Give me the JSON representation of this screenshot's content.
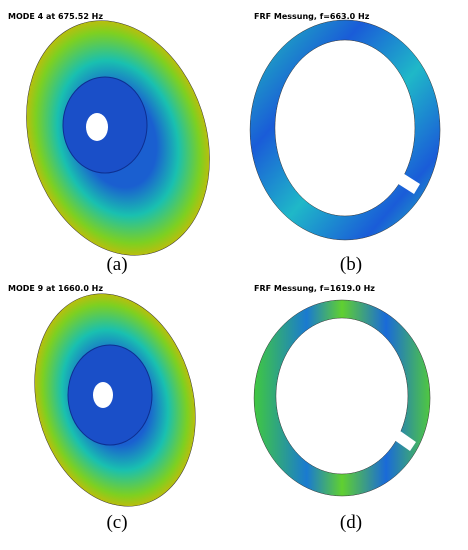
{
  "panels": [
    {
      "title": "MODE 4 at 675.52 Hz",
      "caption": "(a)"
    },
    {
      "title": "FRF Messung, f=663.0 Hz",
      "caption": "(b)"
    },
    {
      "title": "MODE 9 at 1660.0 Hz",
      "caption": "(c)"
    },
    {
      "title": "FRF Messung, f=1619.0 Hz",
      "caption": "(d)"
    }
  ]
}
